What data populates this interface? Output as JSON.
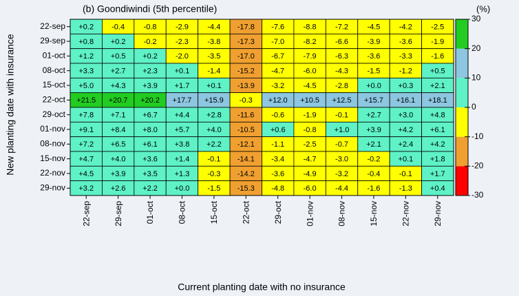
{
  "chart_data": {
    "type": "heatmap",
    "title": "(b) Goondiwindi (5th percentile)",
    "x_label": "Current planting date with no insurance",
    "y_label": "New planting date with insurance",
    "x_categories": [
      "22-sep",
      "29-sep",
      "01-oct",
      "08-oct",
      "15-oct",
      "22-oct",
      "29-oct",
      "01-nov",
      "08-nov",
      "15-nov",
      "22-nov",
      "29-nov"
    ],
    "y_categories": [
      "22-sep",
      "29-sep",
      "01-oct",
      "08-oct",
      "15-oct",
      "22-oct",
      "29-oct",
      "01-nov",
      "08-nov",
      "15-nov",
      "22-nov",
      "29-nov"
    ],
    "values": [
      [
        0.2,
        -0.4,
        -0.8,
        -2.9,
        -4.4,
        -17.8,
        -7.6,
        -8.8,
        -7.2,
        -4.5,
        -4.2,
        -2.5
      ],
      [
        0.8,
        0.2,
        -0.2,
        -2.3,
        -3.8,
        -17.3,
        -7.0,
        -8.2,
        -6.6,
        -3.9,
        -3.6,
        -1.9
      ],
      [
        1.2,
        0.5,
        0.2,
        -2.0,
        -3.5,
        -17.0,
        -6.7,
        -7.9,
        -6.3,
        -3.6,
        -3.3,
        -1.6
      ],
      [
        3.3,
        2.7,
        2.3,
        0.1,
        -1.4,
        -15.2,
        -4.7,
        -6.0,
        -4.3,
        -1.5,
        -1.2,
        0.5
      ],
      [
        5.0,
        4.3,
        3.9,
        1.7,
        0.1,
        -13.9,
        -3.2,
        -4.5,
        -2.8,
        0.0,
        0.3,
        2.1
      ],
      [
        21.5,
        20.7,
        20.2,
        17.7,
        15.9,
        -0.3,
        12.0,
        10.5,
        12.5,
        15.7,
        16.1,
        18.1
      ],
      [
        7.8,
        7.1,
        6.7,
        4.4,
        2.8,
        -11.6,
        -0.6,
        -1.9,
        -0.1,
        2.7,
        3.0,
        4.8
      ],
      [
        9.1,
        8.4,
        8.0,
        5.7,
        4.0,
        -10.5,
        0.6,
        -0.8,
        1.0,
        3.9,
        4.2,
        6.1
      ],
      [
        7.2,
        6.5,
        6.1,
        3.8,
        2.2,
        -12.1,
        -1.1,
        -2.5,
        -0.7,
        2.1,
        2.4,
        4.2
      ],
      [
        4.7,
        4.0,
        3.6,
        1.4,
        -0.1,
        -14.1,
        -3.4,
        -4.7,
        -3.0,
        -0.2,
        0.1,
        1.8
      ],
      [
        4.5,
        3.9,
        3.5,
        1.3,
        -0.3,
        -14.2,
        -3.6,
        -4.9,
        -3.2,
        -0.4,
        -0.1,
        1.7
      ],
      [
        3.2,
        2.6,
        2.2,
        0.0,
        -1.5,
        -15.3,
        -4.8,
        -6.0,
        -4.4,
        -1.6,
        -1.3,
        0.4
      ]
    ],
    "value_labels": [
      [
        "+0.2",
        "-0.4",
        "-0.8",
        "-2.9",
        "-4.4",
        "-17.8",
        "-7.6",
        "-8.8",
        "-7.2",
        "-4.5",
        "-4.2",
        "-2.5"
      ],
      [
        "+0.8",
        "+0.2",
        "-0.2",
        "-2.3",
        "-3.8",
        "-17.3",
        "-7.0",
        "-8.2",
        "-6.6",
        "-3.9",
        "-3.6",
        "-1.9"
      ],
      [
        "+1.2",
        "+0.5",
        "+0.2",
        "-2.0",
        "-3.5",
        "-17.0",
        "-6.7",
        "-7.9",
        "-6.3",
        "-3.6",
        "-3.3",
        "-1.6"
      ],
      [
        "+3.3",
        "+2.7",
        "+2.3",
        "+0.1",
        "-1.4",
        "-15.2",
        "-4.7",
        "-6.0",
        "-4.3",
        "-1.5",
        "-1.2",
        "+0.5"
      ],
      [
        "+5.0",
        "+4.3",
        "+3.9",
        "+1.7",
        "+0.1",
        "-13.9",
        "-3.2",
        "-4.5",
        "-2.8",
        "+0.0",
        "+0.3",
        "+2.1"
      ],
      [
        "+21.5",
        "+20.7",
        "+20.2",
        "+17.7",
        "+15.9",
        "-0.3",
        "+12.0",
        "+10.5",
        "+12.5",
        "+15.7",
        "+16.1",
        "+18.1"
      ],
      [
        "+7.8",
        "+7.1",
        "+6.7",
        "+4.4",
        "+2.8",
        "-11.6",
        "-0.6",
        "-1.9",
        "-0.1",
        "+2.7",
        "+3.0",
        "+4.8"
      ],
      [
        "+9.1",
        "+8.4",
        "+8.0",
        "+5.7",
        "+4.0",
        "-10.5",
        "+0.6",
        "-0.8",
        "+1.0",
        "+3.9",
        "+4.2",
        "+6.1"
      ],
      [
        "+7.2",
        "+6.5",
        "+6.1",
        "+3.8",
        "+2.2",
        "-12.1",
        "-1.1",
        "-2.5",
        "-0.7",
        "+2.1",
        "+2.4",
        "+4.2"
      ],
      [
        "+4.7",
        "+4.0",
        "+3.6",
        "+1.4",
        "-0.1",
        "-14.1",
        "-3.4",
        "-4.7",
        "-3.0",
        "-0.2",
        "+0.1",
        "+1.8"
      ],
      [
        "+4.5",
        "+3.9",
        "+3.5",
        "+1.3",
        "-0.3",
        "-14.2",
        "-3.6",
        "-4.9",
        "-3.2",
        "-0.4",
        "-0.1",
        "+1.7"
      ],
      [
        "+3.2",
        "+2.6",
        "+2.2",
        "+0.0",
        "-1.5",
        "-15.3",
        "-4.8",
        "-6.0",
        "-4.4",
        "-1.6",
        "-1.3",
        "+0.4"
      ]
    ],
    "colorbar": {
      "label": "(%)",
      "clim": [
        -30,
        30
      ],
      "ticks": [
        -30,
        -20,
        -10,
        0,
        10,
        20,
        30
      ],
      "colors": [
        "#ff0000",
        "#f0a030",
        "#ffff00",
        "#5ef2c6",
        "#8cc6e0",
        "#22cc22"
      ]
    }
  }
}
